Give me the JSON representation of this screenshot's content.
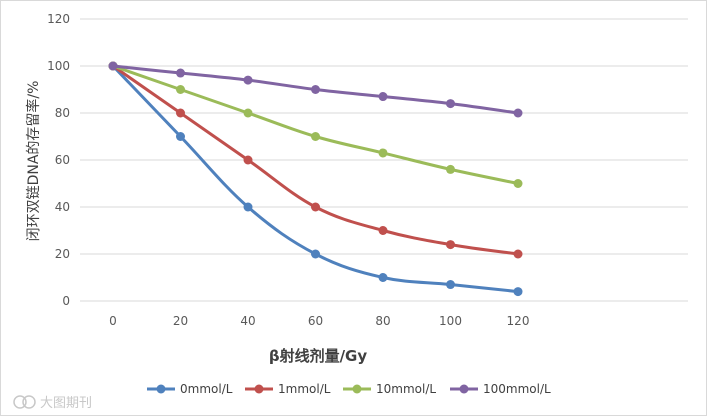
{
  "chart_data": {
    "type": "line",
    "x": [
      0,
      20,
      40,
      60,
      80,
      100,
      120
    ],
    "series": [
      {
        "name": "0mmol/L",
        "color": "#4f81bd",
        "values": [
          100,
          70,
          40,
          20,
          10,
          7,
          4
        ]
      },
      {
        "name": "1mmol/L",
        "color": "#c0504d",
        "values": [
          100,
          80,
          60,
          40,
          30,
          24,
          20
        ]
      },
      {
        "name": "10mmol/L",
        "color": "#9bbb59",
        "values": [
          100,
          90,
          80,
          70,
          63,
          56,
          50
        ]
      },
      {
        "name": "100mmol/L",
        "color": "#8064a2",
        "values": [
          100,
          97,
          94,
          90,
          87,
          84,
          80
        ]
      }
    ],
    "xlabel": "β射线剂量/Gy",
    "ylabel": "闭环双链DNA的存留率/%",
    "ylim": [
      0,
      120
    ],
    "yticks": [
      0,
      20,
      40,
      60,
      80,
      100,
      120
    ],
    "grid": true,
    "legend": "bottom"
  },
  "watermark": "大图期刊"
}
